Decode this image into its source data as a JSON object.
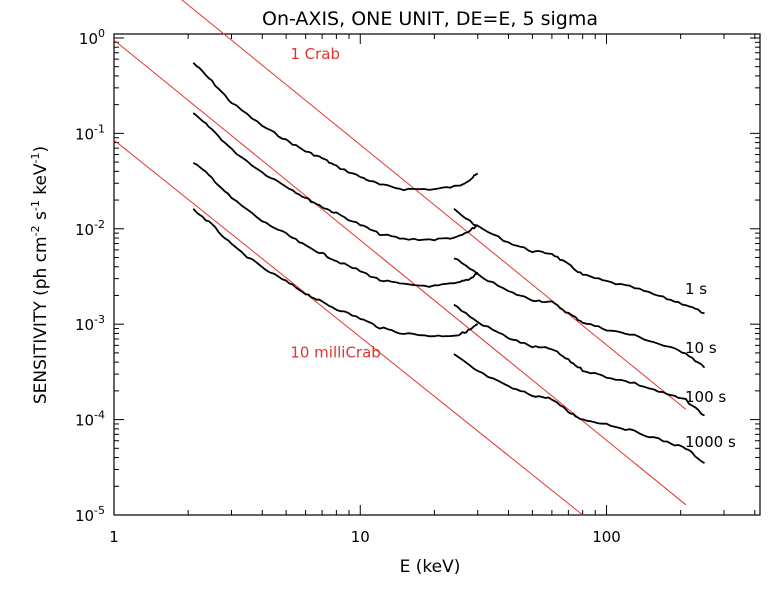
{
  "chart_data": {
    "type": "line",
    "title": "On-AXIS, ONE UNIT,  DE=E, 5 sigma",
    "xlabel": "E (keV)",
    "ylabel": "SENSITIVITY (ph cm",
    "ylabel_parts": {
      "pre": "SENSITIVITY (ph cm",
      "exp1": "-2",
      "mid1": " s",
      "exp2": "-1",
      "mid2": " keV",
      "exp3": "-1",
      "post": ")"
    },
    "x_scale": "log",
    "y_scale": "log",
    "xlim": [
      1,
      420
    ],
    "ylim": [
      1e-05,
      1.1
    ],
    "x_ticks": [
      {
        "value": 1,
        "label": "1"
      },
      {
        "value": 10,
        "label": "10"
      },
      {
        "value": 100,
        "label": "100"
      }
    ],
    "y_ticks": [
      {
        "value": 1e-05,
        "base": "10",
        "exp": "-5"
      },
      {
        "value": 0.0001,
        "base": "10",
        "exp": "-4"
      },
      {
        "value": 0.001,
        "base": "10",
        "exp": "-3"
      },
      {
        "value": 0.01,
        "base": "10",
        "exp": "-2"
      },
      {
        "value": 0.1,
        "base": "10",
        "exp": "-1"
      },
      {
        "value": 1,
        "base": "10",
        "exp": "0"
      }
    ],
    "series": [
      {
        "name": "1 s",
        "label": "1 s",
        "low": [
          [
            2.1,
            0.55
          ],
          [
            2.5,
            0.35
          ],
          [
            3,
            0.21
          ],
          [
            4,
            0.12
          ],
          [
            5,
            0.085
          ],
          [
            6,
            0.065
          ],
          [
            7,
            0.055
          ],
          [
            8,
            0.045
          ],
          [
            10,
            0.035
          ],
          [
            12,
            0.029
          ],
          [
            15,
            0.026
          ],
          [
            20,
            0.026
          ],
          [
            25,
            0.028
          ],
          [
            28,
            0.033
          ],
          [
            30,
            0.038
          ]
        ],
        "high": [
          [
            24,
            0.016
          ],
          [
            30,
            0.0105
          ],
          [
            40,
            0.0072
          ],
          [
            50,
            0.0058
          ],
          [
            60,
            0.0055
          ],
          [
            70,
            0.0042
          ],
          [
            80,
            0.0033
          ],
          [
            100,
            0.0028
          ],
          [
            130,
            0.0024
          ],
          [
            170,
            0.0019
          ],
          [
            210,
            0.0016
          ],
          [
            250,
            0.0013
          ]
        ]
      },
      {
        "name": "10 s",
        "label": "10 s",
        "low": [
          [
            2.1,
            0.16
          ],
          [
            2.5,
            0.11
          ],
          [
            3,
            0.068
          ],
          [
            4,
            0.039
          ],
          [
            5,
            0.028
          ],
          [
            6,
            0.021
          ],
          [
            7,
            0.017
          ],
          [
            8,
            0.0145
          ],
          [
            10,
            0.011
          ],
          [
            12,
            0.0088
          ],
          [
            15,
            0.0078
          ],
          [
            20,
            0.0077
          ],
          [
            25,
            0.0082
          ],
          [
            28,
            0.0095
          ],
          [
            30,
            0.011
          ]
        ],
        "high": [
          [
            24,
            0.005
          ],
          [
            30,
            0.0033
          ],
          [
            40,
            0.0022
          ],
          [
            50,
            0.0018
          ],
          [
            60,
            0.0017
          ],
          [
            70,
            0.0013
          ],
          [
            80,
            0.00105
          ],
          [
            100,
            0.00088
          ],
          [
            130,
            0.00076
          ],
          [
            170,
            0.0006
          ],
          [
            210,
            0.0005
          ],
          [
            250,
            0.00035
          ]
        ]
      },
      {
        "name": "100 s",
        "label": "100 s",
        "low": [
          [
            2.1,
            0.05
          ],
          [
            2.5,
            0.034
          ],
          [
            3,
            0.021
          ],
          [
            4,
            0.012
          ],
          [
            5,
            0.0088
          ],
          [
            6,
            0.0066
          ],
          [
            7,
            0.0055
          ],
          [
            8,
            0.0046
          ],
          [
            10,
            0.0036
          ],
          [
            12,
            0.0029
          ],
          [
            15,
            0.0026
          ],
          [
            20,
            0.0025
          ],
          [
            25,
            0.0027
          ],
          [
            28,
            0.003
          ],
          [
            30,
            0.0035
          ]
        ],
        "high": [
          [
            24,
            0.0016
          ],
          [
            30,
            0.00105
          ],
          [
            40,
            0.00072
          ],
          [
            50,
            0.00058
          ],
          [
            60,
            0.00055
          ],
          [
            70,
            0.00042
          ],
          [
            80,
            0.00033
          ],
          [
            100,
            0.00028
          ],
          [
            130,
            0.00024
          ],
          [
            170,
            0.00019
          ],
          [
            210,
            0.00016
          ],
          [
            250,
            0.00011
          ]
        ]
      },
      {
        "name": "1000 s",
        "label": "1000 s",
        "low": [
          [
            2.1,
            0.016
          ],
          [
            2.5,
            0.011
          ],
          [
            3,
            0.0068
          ],
          [
            4,
            0.0039
          ],
          [
            5,
            0.0028
          ],
          [
            6,
            0.0021
          ],
          [
            7,
            0.0017
          ],
          [
            8,
            0.00145
          ],
          [
            10,
            0.00115
          ],
          [
            12,
            0.00092
          ],
          [
            15,
            0.0008
          ],
          [
            20,
            0.00075
          ],
          [
            25,
            0.00077
          ],
          [
            28,
            0.00088
          ],
          [
            30,
            0.001
          ]
        ],
        "high": [
          [
            24,
            0.00048
          ],
          [
            30,
            0.00032
          ],
          [
            40,
            0.00022
          ],
          [
            50,
            0.00018
          ],
          [
            60,
            0.000165
          ],
          [
            70,
            0.00012
          ],
          [
            80,
            0.0001
          ],
          [
            100,
            9e-05
          ],
          [
            130,
            7.5e-05
          ],
          [
            170,
            6e-05
          ],
          [
            210,
            5e-05
          ],
          [
            250,
            3.5e-05
          ]
        ]
      }
    ],
    "reference_lines": [
      {
        "name": "crab-upper",
        "label": "",
        "points": [
          [
            1,
            9.5
          ],
          [
            210,
            0.000128
          ]
        ]
      },
      {
        "name": "crab-1",
        "label": "1 Crab",
        "points": [
          [
            1,
            0.95
          ],
          [
            210,
            1.28e-05
          ]
        ]
      },
      {
        "name": "crab-10milli",
        "label": "10 milliCrab",
        "points": [
          [
            1,
            0.085
          ],
          [
            80,
            1e-05
          ]
        ]
      }
    ],
    "annotations": [
      {
        "text": "1 Crab",
        "x": 5.2,
        "y": 0.6
      },
      {
        "text": "10 milliCrab",
        "x": 5.2,
        "y": 0.00045
      }
    ],
    "grid": false,
    "colors": {
      "curves": "#000000",
      "reference": "#e0362e"
    }
  }
}
